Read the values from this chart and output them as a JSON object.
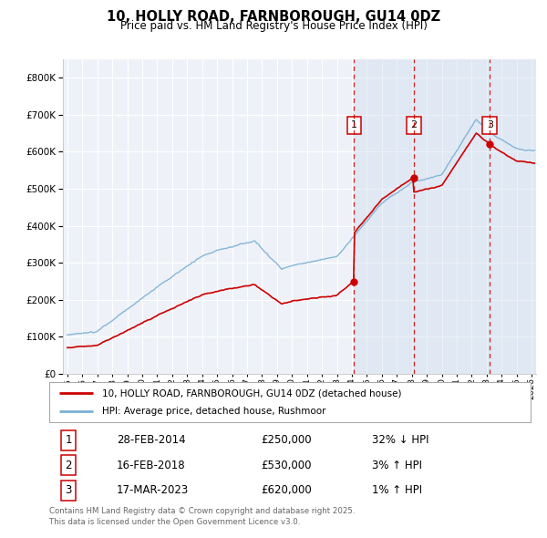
{
  "title": "10, HOLLY ROAD, FARNBOROUGH, GU14 0DZ",
  "subtitle": "Price paid vs. HM Land Registry's House Price Index (HPI)",
  "background_color": "#ffffff",
  "plot_bg_color": "#eef2f8",
  "grid_color": "#ffffff",
  "line_color_hpi": "#7ab0d4",
  "line_color_price": "#cc0000",
  "transactions": [
    {
      "num": 1,
      "date": "28-FEB-2014",
      "price": 250000,
      "hpi_diff": "32% ↓ HPI",
      "x_year": 2014.15
    },
    {
      "num": 2,
      "date": "16-FEB-2018",
      "price": 530000,
      "hpi_diff": "3% ↑ HPI",
      "x_year": 2018.12
    },
    {
      "num": 3,
      "date": "17-MAR-2023",
      "price": 620000,
      "hpi_diff": "1% ↑ HPI",
      "x_year": 2023.21
    }
  ],
  "legend_label_price": "10, HOLLY ROAD, FARNBOROUGH, GU14 0DZ (detached house)",
  "legend_label_hpi": "HPI: Average price, detached house, Rushmoor",
  "footer": "Contains HM Land Registry data © Crown copyright and database right 2025.\nThis data is licensed under the Open Government Licence v3.0.",
  "ylim_max": 850000,
  "xlim_start": 1994.7,
  "xlim_end": 2026.3,
  "yticks": [
    0,
    100000,
    200000,
    300000,
    400000,
    500000,
    600000,
    700000,
    800000
  ]
}
